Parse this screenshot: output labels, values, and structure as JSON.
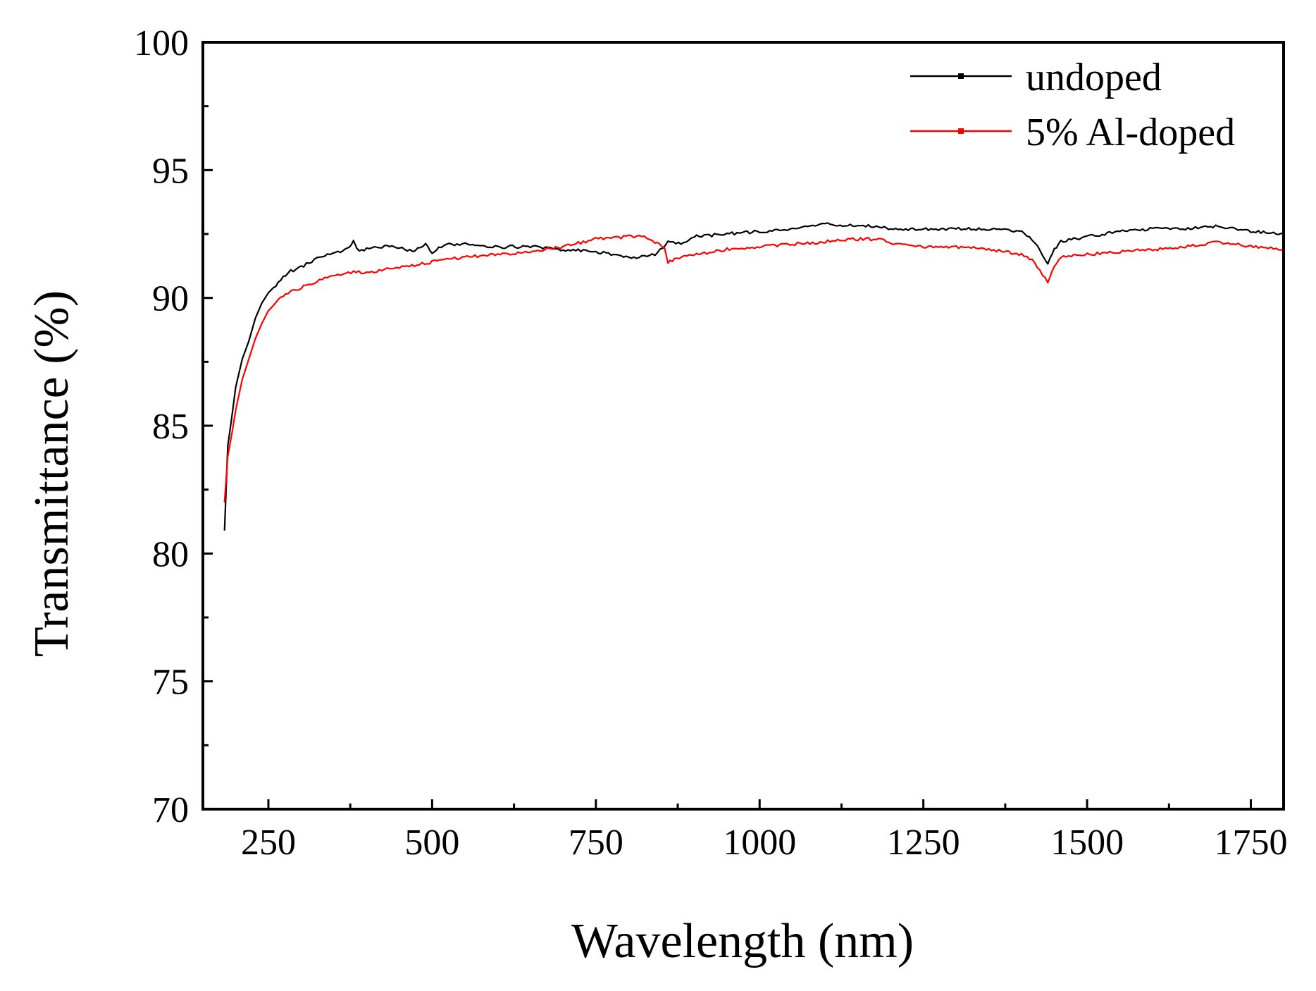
{
  "chart_data": {
    "type": "line",
    "title": "",
    "xlabel": "Wavelength (nm)",
    "ylabel": "Transmittance (%)",
    "xlim": [
      150,
      1800
    ],
    "ylim": [
      70,
      100
    ],
    "x_ticks": [
      250,
      500,
      750,
      1000,
      1250,
      1500,
      1750
    ],
    "x_tick_labels": [
      "250",
      "500",
      "750",
      "1000",
      "1250",
      "1500",
      "1750"
    ],
    "y_ticks": [
      70,
      75,
      80,
      85,
      90,
      95,
      100
    ],
    "y_tick_labels": [
      "70",
      "75",
      "80",
      "85",
      "90",
      "95",
      "100"
    ],
    "legend_position": "top-right",
    "series": [
      {
        "name": "undoped",
        "color": "#000000",
        "x": [
          183,
          188,
          195,
          200,
          210,
          220,
          230,
          240,
          250,
          265,
          280,
          300,
          320,
          340,
          360,
          370,
          380,
          385,
          400,
          420,
          450,
          470,
          490,
          500,
          510,
          530,
          550,
          600,
          650,
          700,
          750,
          800,
          820,
          840,
          860,
          880,
          900,
          950,
          1000,
          1050,
          1100,
          1150,
          1190,
          1200,
          1250,
          1300,
          1350,
          1400,
          1420,
          1440,
          1450,
          1460,
          1500,
          1550,
          1600,
          1650,
          1700,
          1750,
          1800
        ],
        "y": [
          80.9,
          84.2,
          85.5,
          86.5,
          87.6,
          88.3,
          89.2,
          89.8,
          90.2,
          90.6,
          91.0,
          91.2,
          91.5,
          91.7,
          91.8,
          91.9,
          92.2,
          91.9,
          91.9,
          92.0,
          92.0,
          91.8,
          92.1,
          91.7,
          92.0,
          92.1,
          92.1,
          92.0,
          92.0,
          91.9,
          91.8,
          91.6,
          91.6,
          91.7,
          92.2,
          92.1,
          92.4,
          92.5,
          92.6,
          92.7,
          92.9,
          92.8,
          92.8,
          92.7,
          92.7,
          92.7,
          92.7,
          92.6,
          92.2,
          91.3,
          91.9,
          92.2,
          92.4,
          92.6,
          92.7,
          92.7,
          92.8,
          92.6,
          92.5
        ]
      },
      {
        "name": "5% Al-doped",
        "color": "#ff0000",
        "x": [
          183,
          188,
          195,
          200,
          210,
          220,
          230,
          240,
          250,
          265,
          280,
          300,
          320,
          340,
          360,
          380,
          400,
          450,
          500,
          550,
          600,
          650,
          700,
          750,
          800,
          820,
          840,
          855,
          860,
          870,
          900,
          950,
          1000,
          1050,
          1100,
          1150,
          1190,
          1200,
          1250,
          1300,
          1350,
          1400,
          1420,
          1440,
          1450,
          1460,
          1500,
          1550,
          1600,
          1650,
          1700,
          1750,
          1800
        ],
        "y": [
          82.0,
          83.8,
          84.8,
          85.6,
          86.8,
          87.6,
          88.4,
          89.0,
          89.5,
          89.9,
          90.2,
          90.4,
          90.6,
          90.8,
          90.9,
          91.0,
          91.0,
          91.2,
          91.4,
          91.6,
          91.7,
          91.8,
          92.0,
          92.3,
          92.4,
          92.4,
          92.2,
          92.0,
          91.4,
          91.5,
          91.7,
          91.9,
          92.0,
          92.1,
          92.2,
          92.3,
          92.3,
          92.1,
          92.0,
          92.0,
          91.9,
          91.7,
          91.4,
          90.6,
          91.2,
          91.6,
          91.7,
          91.8,
          91.9,
          92.0,
          92.2,
          92.0,
          91.9
        ]
      }
    ]
  }
}
